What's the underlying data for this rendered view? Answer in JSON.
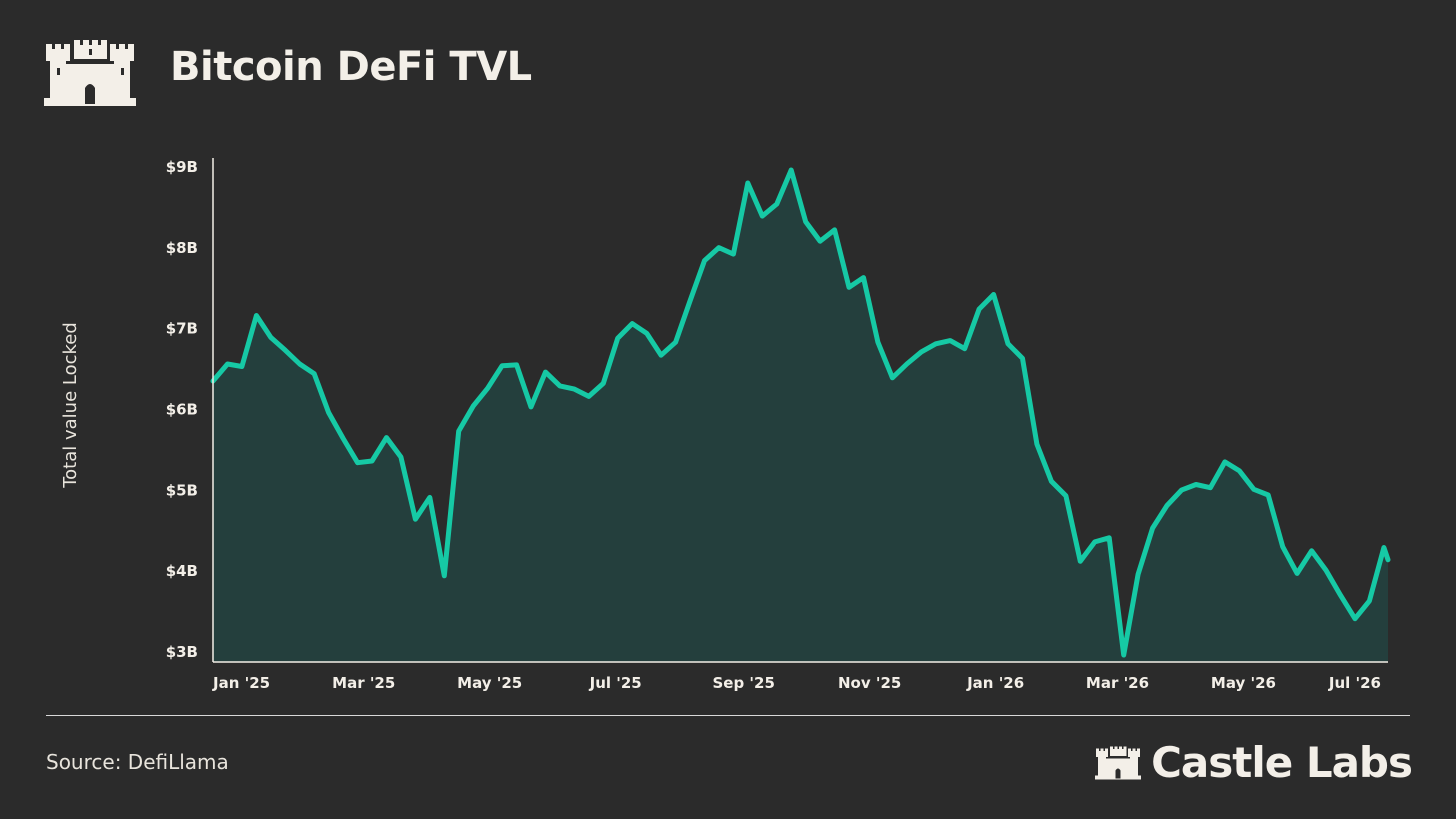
{
  "title": "Bitcoin DeFi TVL",
  "source": "Source: DefiLlama",
  "brand": "Castle Labs",
  "colors": {
    "background": "#2b2b2b",
    "line": "#16c9a5",
    "fill": "#243f3d",
    "text": "#f3efe8"
  },
  "chart_data": {
    "type": "area",
    "title": "Bitcoin DeFi TVL",
    "ylabel": "Total value Locked",
    "xlabel": "",
    "ylim": [
      3,
      9.2
    ],
    "yticks": [
      3,
      4,
      5,
      6,
      7,
      8,
      9
    ],
    "ytick_labels": [
      "$3B",
      "$4B",
      "$5B",
      "$6B",
      "$7B",
      "$8B",
      "$9B"
    ],
    "xticks": [
      {
        "label": "Jan '25",
        "date": "2025-01-15"
      },
      {
        "label": "Mar '25",
        "date": "2025-03-15"
      },
      {
        "label": "May '25",
        "date": "2025-05-15"
      },
      {
        "label": "Jul '25",
        "date": "2025-07-15"
      },
      {
        "label": "Sep '25",
        "date": "2025-09-15"
      },
      {
        "label": "Nov '25",
        "date": "2025-11-15"
      },
      {
        "label": "Jan '26",
        "date": "2026-01-15"
      },
      {
        "label": "Mar '26",
        "date": "2026-03-15"
      },
      {
        "label": "May '26",
        "date": "2026-05-15"
      },
      {
        "label": "Jul '26",
        "date": "2026-07-15"
      }
    ],
    "x_range": [
      "2025-01-01",
      "2026-07-24"
    ],
    "grid": false,
    "series": [
      {
        "points": [
          [
            "2025-01-01",
            6.34
          ],
          [
            "2025-01-08",
            6.55
          ],
          [
            "2025-01-15",
            6.52
          ],
          [
            "2025-01-22",
            7.15
          ],
          [
            "2025-01-29",
            6.88
          ],
          [
            "2025-02-05",
            6.72
          ],
          [
            "2025-02-12",
            6.55
          ],
          [
            "2025-02-19",
            6.43
          ],
          [
            "2025-02-26",
            5.95
          ],
          [
            "2025-03-05",
            5.63
          ],
          [
            "2025-03-12",
            5.33
          ],
          [
            "2025-03-19",
            5.35
          ],
          [
            "2025-03-26",
            5.64
          ],
          [
            "2025-04-02",
            5.4
          ],
          [
            "2025-04-09",
            4.63
          ],
          [
            "2025-04-16",
            4.9
          ],
          [
            "2025-04-23",
            3.93
          ],
          [
            "2025-04-30",
            5.72
          ],
          [
            "2025-05-07",
            6.03
          ],
          [
            "2025-05-14",
            6.25
          ],
          [
            "2025-05-21",
            6.53
          ],
          [
            "2025-05-28",
            6.54
          ],
          [
            "2025-06-04",
            6.02
          ],
          [
            "2025-06-11",
            6.45
          ],
          [
            "2025-06-18",
            6.28
          ],
          [
            "2025-06-25",
            6.24
          ],
          [
            "2025-07-02",
            6.15
          ],
          [
            "2025-07-09",
            6.31
          ],
          [
            "2025-07-16",
            6.87
          ],
          [
            "2025-07-23",
            7.05
          ],
          [
            "2025-07-30",
            6.93
          ],
          [
            "2025-08-06",
            6.66
          ],
          [
            "2025-08-13",
            6.82
          ],
          [
            "2025-08-20",
            7.33
          ],
          [
            "2025-08-27",
            7.83
          ],
          [
            "2025-09-03",
            7.99
          ],
          [
            "2025-09-10",
            7.91
          ],
          [
            "2025-09-17",
            8.79
          ],
          [
            "2025-09-24",
            8.38
          ],
          [
            "2025-10-01",
            8.53
          ],
          [
            "2025-10-08",
            8.95
          ],
          [
            "2025-10-15",
            8.31
          ],
          [
            "2025-10-22",
            8.07
          ],
          [
            "2025-10-29",
            8.21
          ],
          [
            "2025-11-05",
            7.5
          ],
          [
            "2025-11-12",
            7.62
          ],
          [
            "2025-11-19",
            6.82
          ],
          [
            "2025-11-26",
            6.38
          ],
          [
            "2025-12-03",
            6.55
          ],
          [
            "2025-12-10",
            6.7
          ],
          [
            "2025-12-17",
            6.8
          ],
          [
            "2025-12-24",
            6.84
          ],
          [
            "2025-12-31",
            6.74
          ],
          [
            "2026-01-07",
            7.23
          ],
          [
            "2026-01-14",
            7.41
          ],
          [
            "2026-01-21",
            6.8
          ],
          [
            "2026-01-28",
            6.62
          ],
          [
            "2026-02-04",
            5.56
          ],
          [
            "2026-02-11",
            5.1
          ],
          [
            "2026-02-18",
            4.92
          ],
          [
            "2026-02-25",
            4.11
          ],
          [
            "2026-03-04",
            4.35
          ],
          [
            "2026-03-11",
            4.4
          ],
          [
            "2026-03-18",
            2.95
          ],
          [
            "2026-03-25",
            3.95
          ],
          [
            "2026-04-01",
            4.52
          ],
          [
            "2026-04-08",
            4.8
          ],
          [
            "2026-04-15",
            4.99
          ],
          [
            "2026-04-22",
            5.06
          ],
          [
            "2026-04-29",
            5.02
          ],
          [
            "2026-05-06",
            5.34
          ],
          [
            "2026-05-13",
            5.23
          ],
          [
            "2026-05-20",
            5.0
          ],
          [
            "2026-05-27",
            4.93
          ],
          [
            "2026-06-03",
            4.29
          ],
          [
            "2026-06-10",
            3.96
          ],
          [
            "2026-06-17",
            4.24
          ],
          [
            "2026-06-24",
            4.0
          ],
          [
            "2026-07-01",
            3.69
          ],
          [
            "2026-07-08",
            3.4
          ],
          [
            "2026-07-15",
            3.62
          ],
          [
            "2026-07-22",
            4.28
          ],
          [
            "2026-07-24",
            4.13
          ]
        ]
      }
    ]
  }
}
